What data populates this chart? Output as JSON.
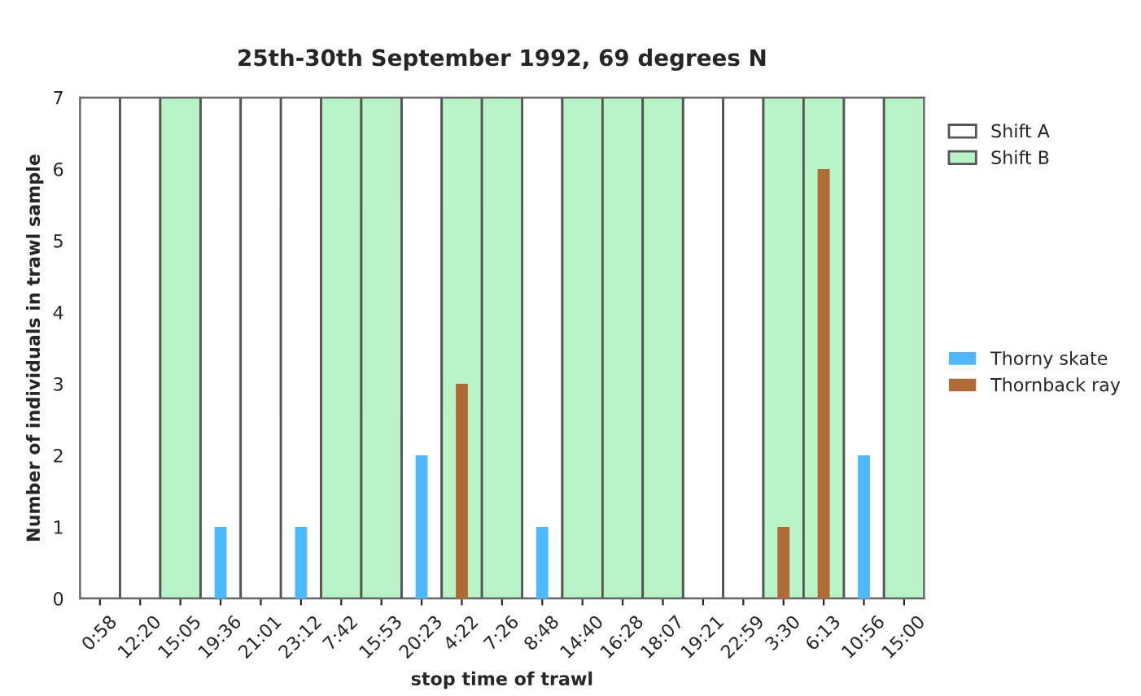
{
  "chart_data": {
    "type": "bar",
    "title": "25th-30th September 1992, 69 degrees N",
    "xlabel": "stop time of trawl",
    "ylabel": "Number of individuals in trawl sample",
    "categories": [
      "0:58",
      "12:20",
      "15:05",
      "19:36",
      "21:01",
      "23:12",
      "7:42",
      "15:53",
      "20:23",
      "4:22",
      "7:26",
      "8:48",
      "14:40",
      "16:28",
      "18:07",
      "19:21",
      "22:59",
      "3:30",
      "6:13",
      "10:56",
      "15:00"
    ],
    "series": [
      {
        "name": "Shift A",
        "color": "#ffffff",
        "values": [
          7,
          7,
          null,
          7,
          7,
          7,
          null,
          null,
          7,
          null,
          null,
          7,
          null,
          null,
          null,
          7,
          7,
          null,
          null,
          7,
          null
        ]
      },
      {
        "name": "Shift B",
        "color": "#b8f4c8",
        "values": [
          null,
          null,
          7,
          null,
          null,
          null,
          7,
          7,
          null,
          7,
          7,
          null,
          7,
          7,
          7,
          null,
          null,
          7,
          7,
          null,
          7
        ]
      },
      {
        "name": "Thorny skate",
        "color": "#4db8ff",
        "values": [
          0,
          0,
          0,
          1,
          0,
          1,
          0,
          0,
          2,
          0,
          0,
          1,
          0,
          0,
          0,
          0,
          0,
          0,
          0,
          2,
          0
        ]
      },
      {
        "name": "Thornback ray",
        "color": "#b06a35",
        "values": [
          0,
          0,
          0,
          0,
          0,
          0,
          0,
          0,
          0,
          3,
          0,
          0,
          0,
          0,
          0,
          0,
          0,
          1,
          6,
          0,
          0
        ]
      }
    ],
    "ylim": [
      0,
      7
    ],
    "yticks": [
      0,
      1,
      2,
      3,
      4,
      5,
      6,
      7
    ],
    "legend": "right"
  }
}
